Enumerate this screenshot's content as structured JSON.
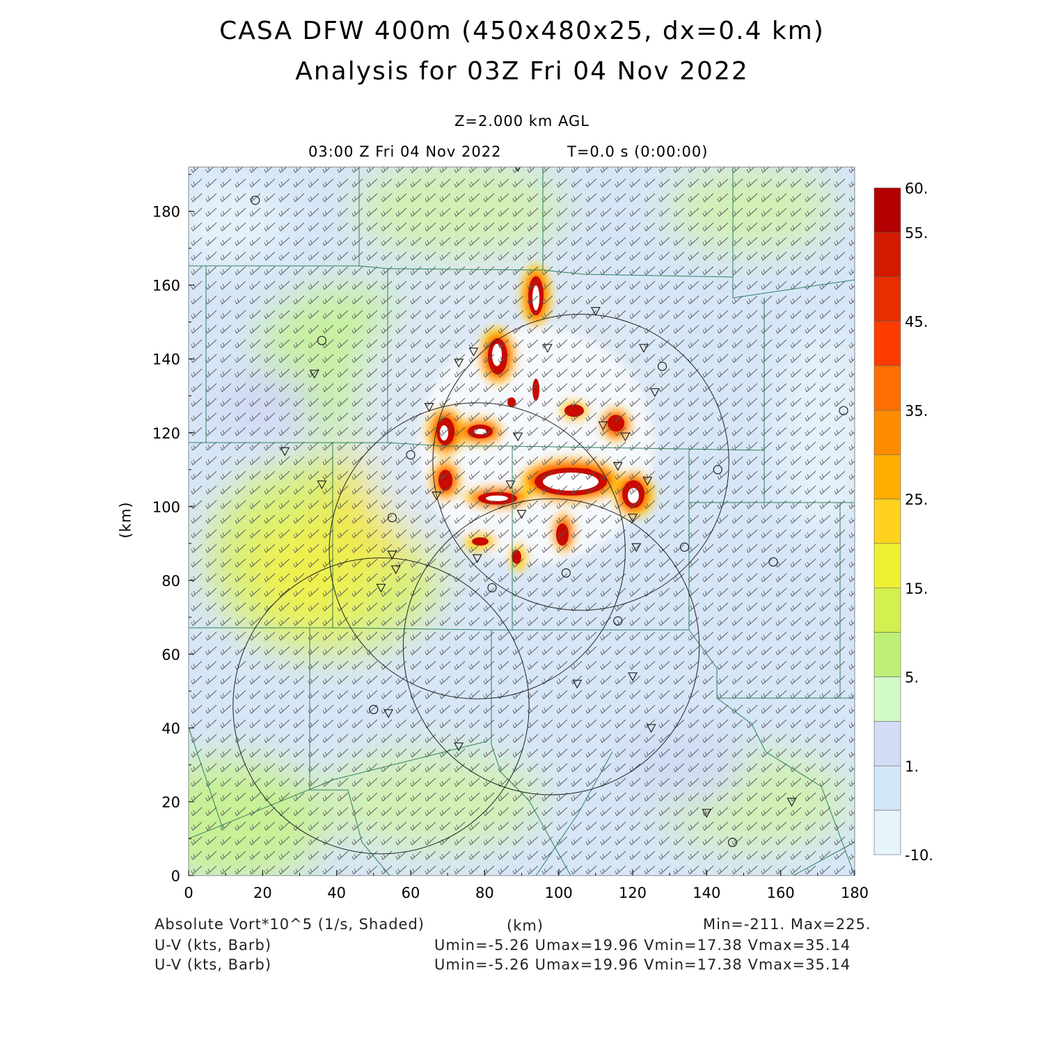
{
  "header": {
    "title_line1": "CASA DFW 400m (450x480x25, dx=0.4 km)",
    "title_line2": "Analysis for 03Z Fri 04 Nov 2022",
    "level_label": "Z=2.000 km AGL",
    "time_label": "03:00 Z Fri 04 Nov 2022",
    "elapsed_label": "T=0.0 s (0:00:00)"
  },
  "axes": {
    "x_label": "(km)",
    "y_label": "(km)",
    "x_ticks": [
      "0",
      "20",
      "40",
      "60",
      "80",
      "100",
      "120",
      "140",
      "160",
      "180"
    ],
    "y_ticks": [
      "0",
      "20",
      "40",
      "60",
      "80",
      "100",
      "120",
      "140",
      "160",
      "180"
    ],
    "x_range": [
      0,
      180
    ],
    "y_range": [
      0,
      192
    ]
  },
  "colorbar": {
    "labels": [
      "60.",
      "55.",
      "45.",
      "35.",
      "25.",
      "15.",
      "5.",
      "1.",
      "-10."
    ],
    "colors": [
      "#b30000",
      "#d21a00",
      "#e62e00",
      "#ff3c00",
      "#ff6e00",
      "#ff8c00",
      "#ffae00",
      "#ffd21e",
      "#f0f032",
      "#d2f050",
      "#bef078",
      "#d2fac8",
      "#d2dcf5",
      "#d2e6f5",
      "#e6f5fa"
    ]
  },
  "footer": {
    "field_label": "Absolute Vort*10^5 (1/s, Shaded)",
    "x_unit": "(km)",
    "minmax": "Min=-211. Max=225.",
    "barb_label_1": "U-V (kts, Barb)",
    "barb_stats_1": "Umin=-5.26  Umax=19.96  Vmin=17.38  Vmax=35.14",
    "barb_label_2": "U-V (kts, Barb)",
    "barb_stats_2": "Umin=-5.26  Umax=19.96  Vmin=17.38  Vmax=35.14"
  },
  "map_features": {
    "radar_rings": [
      {
        "name": "ring-north-east",
        "center_km": [
          106,
          112
        ],
        "radius_km": 40
      },
      {
        "name": "ring-center",
        "center_km": [
          78,
          88
        ],
        "radius_km": 40
      },
      {
        "name": "ring-south",
        "center_km": [
          98,
          62
        ],
        "radius_km": 40
      },
      {
        "name": "ring-south-west",
        "center_km": [
          52,
          46
        ],
        "radius_km": 40
      }
    ],
    "station_markers": [
      {
        "symbol": "circle",
        "x": 18,
        "y": 183
      },
      {
        "symbol": "circle",
        "x": 36,
        "y": 145
      },
      {
        "symbol": "circle",
        "x": 60,
        "y": 114
      },
      {
        "symbol": "circle",
        "x": 55,
        "y": 97
      },
      {
        "symbol": "circle",
        "x": 128,
        "y": 138
      },
      {
        "symbol": "circle",
        "x": 177,
        "y": 126
      },
      {
        "symbol": "circle",
        "x": 143,
        "y": 110
      },
      {
        "symbol": "circle",
        "x": 134,
        "y": 89
      },
      {
        "symbol": "circle",
        "x": 158,
        "y": 85
      },
      {
        "symbol": "circle",
        "x": 102,
        "y": 82
      },
      {
        "symbol": "circle",
        "x": 82,
        "y": 78
      },
      {
        "symbol": "circle",
        "x": 116,
        "y": 69
      },
      {
        "symbol": "circle",
        "x": 50,
        "y": 45
      },
      {
        "symbol": "circle",
        "x": 147,
        "y": 9
      },
      {
        "symbol": "triangle",
        "x": 89,
        "y": 192
      },
      {
        "symbol": "triangle",
        "x": 34,
        "y": 136
      },
      {
        "symbol": "triangle",
        "x": 73,
        "y": 139
      },
      {
        "symbol": "triangle",
        "x": 77,
        "y": 142
      },
      {
        "symbol": "triangle",
        "x": 97,
        "y": 143
      },
      {
        "symbol": "triangle",
        "x": 110,
        "y": 153
      },
      {
        "symbol": "triangle",
        "x": 123,
        "y": 143
      },
      {
        "symbol": "triangle",
        "x": 126,
        "y": 131
      },
      {
        "symbol": "triangle",
        "x": 65,
        "y": 127
      },
      {
        "symbol": "triangle",
        "x": 26,
        "y": 115
      },
      {
        "symbol": "triangle",
        "x": 36,
        "y": 106
      },
      {
        "symbol": "triangle",
        "x": 67,
        "y": 103
      },
      {
        "symbol": "triangle",
        "x": 89,
        "y": 119
      },
      {
        "symbol": "triangle",
        "x": 112,
        "y": 122
      },
      {
        "symbol": "triangle",
        "x": 118,
        "y": 119
      },
      {
        "symbol": "triangle",
        "x": 116,
        "y": 111
      },
      {
        "symbol": "triangle",
        "x": 124,
        "y": 107
      },
      {
        "symbol": "triangle",
        "x": 87,
        "y": 106
      },
      {
        "symbol": "triangle",
        "x": 90,
        "y": 98
      },
      {
        "symbol": "triangle",
        "x": 120,
        "y": 97
      },
      {
        "symbol": "triangle",
        "x": 121,
        "y": 89
      },
      {
        "symbol": "triangle",
        "x": 55,
        "y": 87
      },
      {
        "symbol": "triangle",
        "x": 56,
        "y": 83
      },
      {
        "symbol": "triangle",
        "x": 52,
        "y": 78
      },
      {
        "symbol": "triangle",
        "x": 78,
        "y": 86
      },
      {
        "symbol": "triangle",
        "x": 105,
        "y": 52
      },
      {
        "symbol": "triangle",
        "x": 120,
        "y": 54
      },
      {
        "symbol": "triangle",
        "x": 125,
        "y": 40
      },
      {
        "symbol": "triangle",
        "x": 73,
        "y": 35
      },
      {
        "symbol": "triangle",
        "x": 54,
        "y": 44
      },
      {
        "symbol": "triangle",
        "x": 140,
        "y": 17
      },
      {
        "symbol": "triangle",
        "x": 163,
        "y": 20
      }
    ]
  }
}
